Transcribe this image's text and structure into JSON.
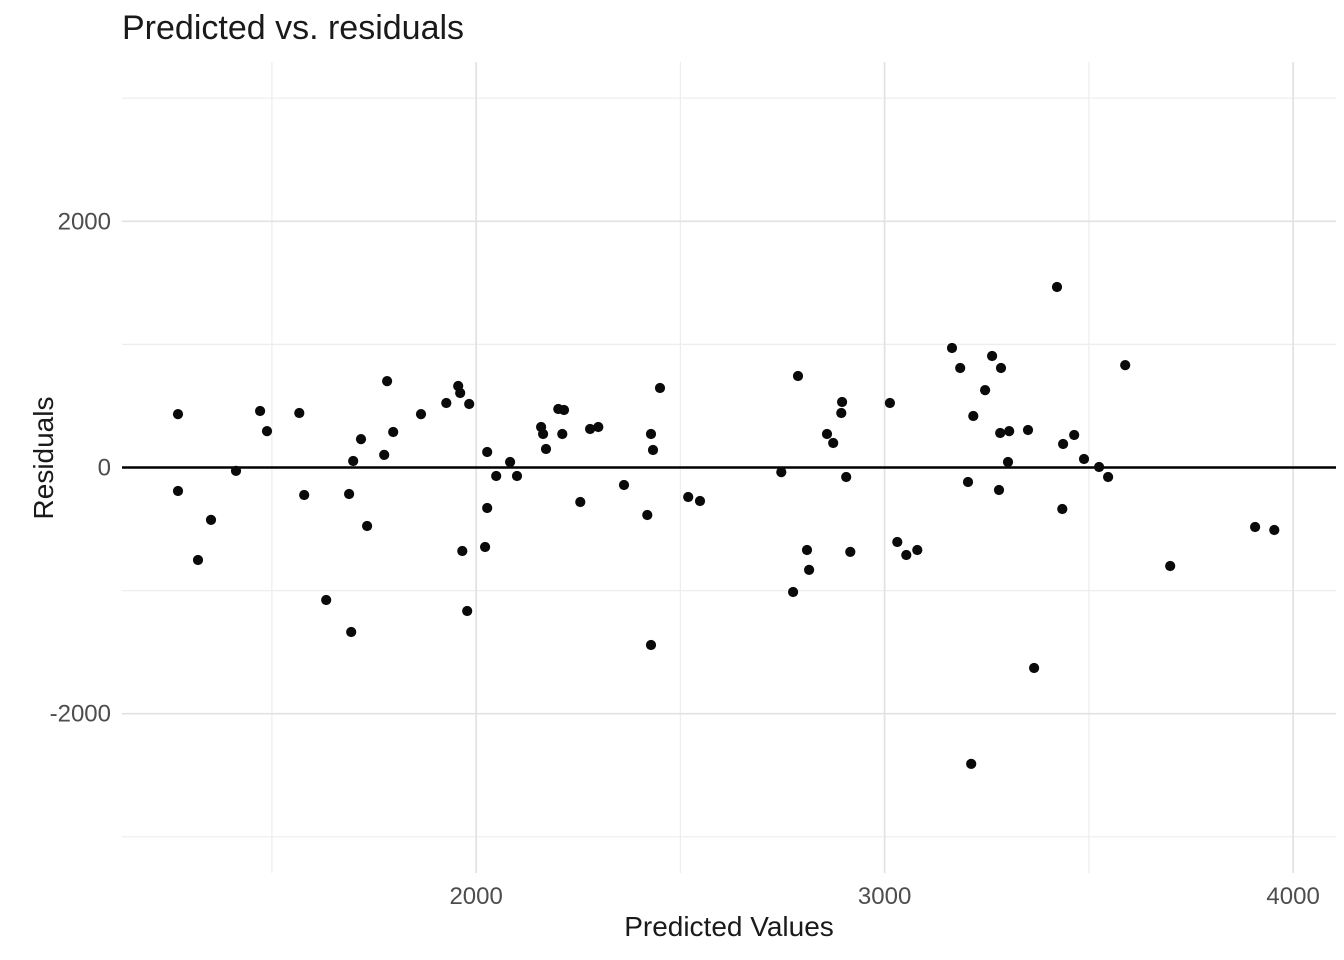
{
  "chart_data": {
    "type": "scatter",
    "title": "Predicted vs. residuals",
    "xlabel": "Predicted Values",
    "ylabel": "Residuals",
    "x_ticks": [
      2000,
      3000,
      4000
    ],
    "x_minor_ticks": [
      1500,
      2500,
      3500
    ],
    "y_ticks": [
      2000,
      0,
      -2000
    ],
    "y_minor_ticks": [
      3000,
      1000,
      -1000,
      -3000
    ],
    "xlim": [
      1133,
      4105
    ],
    "ylim": [
      -3294,
      3294
    ],
    "grid": true,
    "legend": "none",
    "hline_y": 0,
    "colors": {
      "point": "#0a0a0a",
      "hline": "#000000",
      "grid_major": "#e2e2e2",
      "grid_minor": "#ededed",
      "tick_text": "#4d4d4d",
      "title_text": "#1a1a1a",
      "background": "#ffffff"
    },
    "points": [
      [
        1270,
        434
      ],
      [
        1471,
        459
      ],
      [
        1488,
        296
      ],
      [
        1567,
        443
      ],
      [
        1782,
        702
      ],
      [
        1718,
        231
      ],
      [
        1797,
        288
      ],
      [
        1699,
        53
      ],
      [
        1775,
        102
      ],
      [
        1412,
        -28
      ],
      [
        1270,
        -191
      ],
      [
        1579,
        -223
      ],
      [
        1689,
        -215
      ],
      [
        1865,
        434
      ],
      [
        1927,
        524
      ],
      [
        1956,
        662
      ],
      [
        1961,
        605
      ],
      [
        1983,
        516
      ],
      [
        2027,
        126
      ],
      [
        2083,
        45
      ],
      [
        2049,
        -69
      ],
      [
        2100,
        -69
      ],
      [
        2159,
        329
      ],
      [
        2164,
        272
      ],
      [
        2171,
        150
      ],
      [
        2201,
        475
      ],
      [
        2215,
        467
      ],
      [
        2211,
        272
      ],
      [
        2279,
        313
      ],
      [
        2299,
        329
      ],
      [
        2255,
        -280
      ],
      [
        2027,
        -329
      ],
      [
        2450,
        646
      ],
      [
        2428,
        272
      ],
      [
        2433,
        142
      ],
      [
        2788,
        743
      ],
      [
        2896,
        532
      ],
      [
        2894,
        443
      ],
      [
        2859,
        272
      ],
      [
        2874,
        199
      ],
      [
        2747,
        -37
      ],
      [
        2362,
        -142
      ],
      [
        2906,
        -77
      ],
      [
        2519,
        -240
      ],
      [
        2548,
        -272
      ],
      [
        3422,
        1466
      ],
      [
        3165,
        971
      ],
      [
        3263,
        906
      ],
      [
        3185,
        808
      ],
      [
        3285,
        808
      ],
      [
        3246,
        629
      ],
      [
        3013,
        524
      ],
      [
        3217,
        418
      ],
      [
        3283,
        280
      ],
      [
        3305,
        296
      ],
      [
        3351,
        305
      ],
      [
        3437,
        191
      ],
      [
        3464,
        264
      ],
      [
        3302,
        45
      ],
      [
        3204,
        -118
      ],
      [
        3280,
        -183
      ],
      [
        3435,
        -337
      ],
      [
        3589,
        832
      ],
      [
        3488,
        69
      ],
      [
        3525,
        4
      ],
      [
        3547,
        -77
      ],
      [
        1351,
        -426
      ],
      [
        1319,
        -751
      ],
      [
        1733,
        -475
      ],
      [
        1633,
        -1076
      ],
      [
        1694,
        -1336
      ],
      [
        1966,
        -678
      ],
      [
        2022,
        -646
      ],
      [
        1978,
        -1166
      ],
      [
        2419,
        -386
      ],
      [
        2810,
        -670
      ],
      [
        2916,
        -686
      ],
      [
        2815,
        -832
      ],
      [
        2776,
        -1011
      ],
      [
        2428,
        -1442
      ],
      [
        3031,
        -605
      ],
      [
        3053,
        -711
      ],
      [
        3080,
        -670
      ],
      [
        3366,
        -1629
      ],
      [
        3212,
        -2408
      ],
      [
        3907,
        -483
      ],
      [
        3954,
        -508
      ],
      [
        3699,
        -800
      ]
    ]
  }
}
